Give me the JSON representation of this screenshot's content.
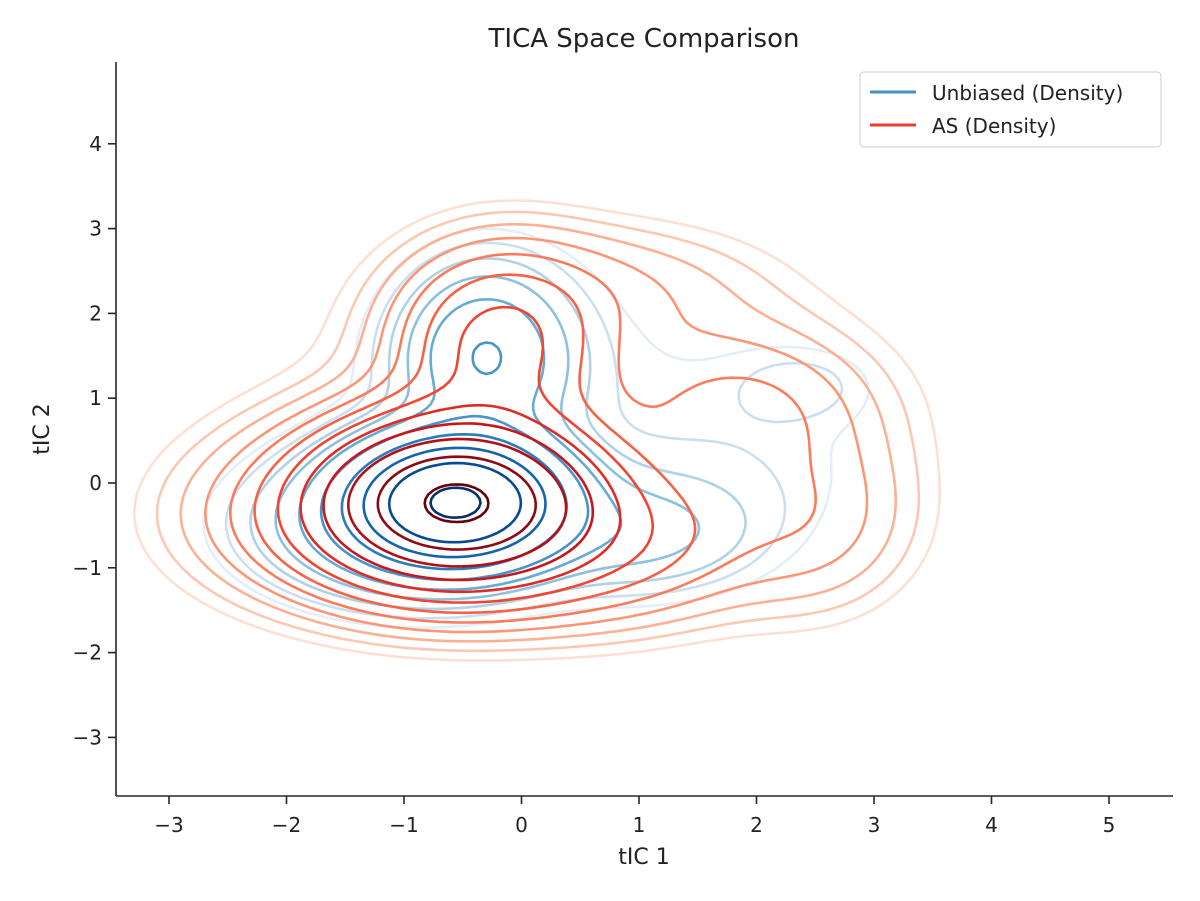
{
  "chart_data": {
    "type": "contour",
    "title": "TICA Space Comparison",
    "xlabel": "tIC 1",
    "ylabel": "tIC 2",
    "xlim": [
      -3.45,
      5.55
    ],
    "ylim": [
      -3.7,
      4.95
    ],
    "xticks": [
      -3,
      -2,
      -1,
      0,
      1,
      2,
      3,
      4,
      5
    ],
    "yticks": [
      -3,
      -2,
      -1,
      0,
      1,
      2,
      3,
      4
    ],
    "xtick_labels": [
      "−3",
      "−2",
      "−1",
      "0",
      "1",
      "2",
      "3",
      "4",
      "5"
    ],
    "ytick_labels": [
      "−3",
      "−2",
      "−1",
      "0",
      "1",
      "2",
      "3",
      "4"
    ],
    "grid": false,
    "legend_position": "top-right",
    "series": [
      {
        "name": "Unbiased (Density)",
        "color": "#4292c6",
        "colormap": "Blues",
        "peak": [
          -0.55,
          -0.22
        ],
        "contour_levels": 10,
        "extent_x": [
          -2.4,
          3.2
        ],
        "extent_y": [
          -1.8,
          3.0
        ]
      },
      {
        "name": "AS (Density)",
        "color": "#ef3b2c",
        "colormap": "Reds",
        "peak": [
          -0.55,
          -0.22
        ],
        "contour_levels": 12,
        "extent_x": [
          -2.7,
          3.8
        ],
        "extent_y": [
          -2.4,
          3.35
        ]
      }
    ]
  }
}
